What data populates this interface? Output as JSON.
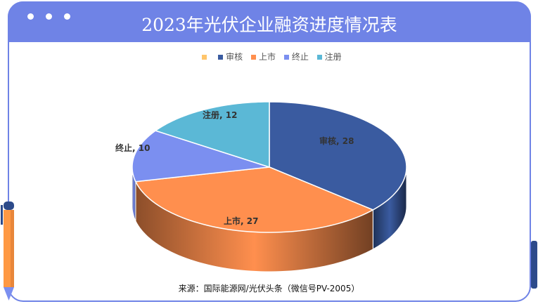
{
  "title": "2023年光伏企业融资进度情况表",
  "source": "来源：国际能源网/光伏头条（微信号PV-2005）",
  "chart_data": {
    "type": "pie",
    "title": "2023年光伏企业融资进度情况表",
    "legend_position": "top",
    "series": [
      {
        "name": "审核",
        "value": 28,
        "label": "审核, 28",
        "color": "#3A5BA0"
      },
      {
        "name": "上市",
        "value": 27,
        "label": "上市, 27",
        "color": "#FF8F4E"
      },
      {
        "name": "终止",
        "value": 10,
        "label": "终止, 10",
        "color": "#7B8FF0"
      },
      {
        "name": "注册",
        "value": 12,
        "label": "注册, 12",
        "color": "#5BB8D6"
      }
    ],
    "legend_extra_color": "#FFC56B"
  }
}
